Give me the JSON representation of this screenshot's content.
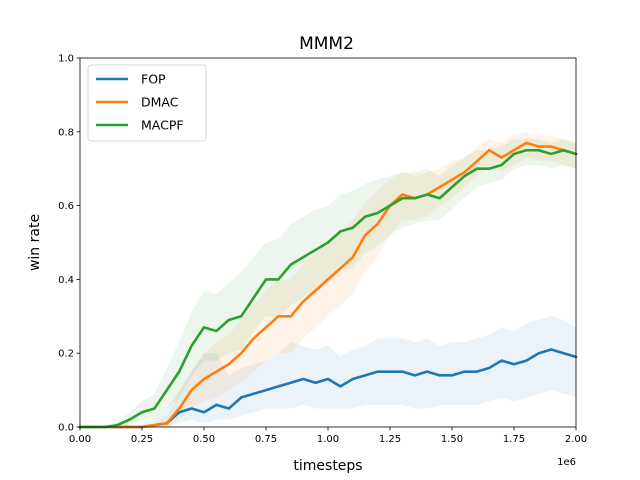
{
  "chart_data": {
    "type": "line",
    "title": "MMM2",
    "xlabel": "timesteps",
    "ylabel": "win rate",
    "x_offset_label": "1e6",
    "xlim": [
      0,
      2.0
    ],
    "ylim": [
      0,
      1.0
    ],
    "xticks": [
      0.0,
      0.25,
      0.5,
      0.75,
      1.0,
      1.25,
      1.5,
      1.75,
      2.0
    ],
    "xtick_labels": [
      "0.00",
      "0.25",
      "0.50",
      "0.75",
      "1.00",
      "1.25",
      "1.50",
      "1.75",
      "2.00"
    ],
    "yticks": [
      0.0,
      0.2,
      0.4,
      0.6,
      0.8,
      1.0
    ],
    "ytick_labels": [
      "0.0",
      "0.2",
      "0.4",
      "0.6",
      "0.8",
      "1.0"
    ],
    "legend_position": "top-left",
    "grid": false,
    "x": [
      0.0,
      0.05,
      0.1,
      0.15,
      0.2,
      0.25,
      0.3,
      0.35,
      0.4,
      0.45,
      0.5,
      0.55,
      0.6,
      0.65,
      0.7,
      0.75,
      0.8,
      0.85,
      0.9,
      0.95,
      1.0,
      1.05,
      1.1,
      1.15,
      1.2,
      1.25,
      1.3,
      1.35,
      1.4,
      1.45,
      1.5,
      1.55,
      1.6,
      1.65,
      1.7,
      1.75,
      1.8,
      1.85,
      1.9,
      1.95,
      2.0
    ],
    "series": [
      {
        "name": "FOP",
        "color": "#1f77b4",
        "values": [
          0.0,
          0.0,
          0.0,
          0.0,
          0.0,
          0.0,
          0.005,
          0.01,
          0.04,
          0.05,
          0.04,
          0.06,
          0.05,
          0.08,
          0.09,
          0.1,
          0.11,
          0.12,
          0.13,
          0.12,
          0.13,
          0.11,
          0.13,
          0.14,
          0.15,
          0.15,
          0.15,
          0.14,
          0.15,
          0.14,
          0.14,
          0.15,
          0.15,
          0.16,
          0.18,
          0.17,
          0.18,
          0.2,
          0.21,
          0.2,
          0.19
        ],
        "lower": [
          0.0,
          0.0,
          0.0,
          0.0,
          0.0,
          0.0,
          0.0,
          0.0,
          0.01,
          0.02,
          0.01,
          0.02,
          0.02,
          0.03,
          0.04,
          0.05,
          0.05,
          0.05,
          0.06,
          0.05,
          0.05,
          0.05,
          0.05,
          0.06,
          0.06,
          0.06,
          0.06,
          0.05,
          0.05,
          0.06,
          0.06,
          0.06,
          0.06,
          0.07,
          0.08,
          0.07,
          0.08,
          0.09,
          0.1,
          0.09,
          0.08
        ],
        "upper": [
          0.0,
          0.0,
          0.0,
          0.0,
          0.0,
          0.005,
          0.02,
          0.05,
          0.1,
          0.15,
          0.2,
          0.2,
          0.14,
          0.16,
          0.17,
          0.18,
          0.2,
          0.23,
          0.22,
          0.21,
          0.22,
          0.19,
          0.21,
          0.22,
          0.24,
          0.24,
          0.24,
          0.23,
          0.24,
          0.22,
          0.23,
          0.23,
          0.24,
          0.25,
          0.27,
          0.26,
          0.28,
          0.29,
          0.3,
          0.29,
          0.27
        ]
      },
      {
        "name": "DMAC",
        "color": "#ff7f0e",
        "values": [
          0.0,
          0.0,
          0.0,
          0.0,
          0.0,
          0.0,
          0.005,
          0.01,
          0.05,
          0.1,
          0.13,
          0.15,
          0.17,
          0.2,
          0.24,
          0.27,
          0.3,
          0.3,
          0.34,
          0.37,
          0.4,
          0.43,
          0.46,
          0.52,
          0.55,
          0.6,
          0.63,
          0.62,
          0.63,
          0.65,
          0.67,
          0.69,
          0.72,
          0.75,
          0.73,
          0.75,
          0.77,
          0.76,
          0.76,
          0.75,
          0.74
        ],
        "lower": [
          0.0,
          0.0,
          0.0,
          0.0,
          0.0,
          0.0,
          0.0,
          0.0,
          0.02,
          0.05,
          0.07,
          0.08,
          0.1,
          0.12,
          0.15,
          0.18,
          0.2,
          0.2,
          0.24,
          0.27,
          0.3,
          0.33,
          0.36,
          0.42,
          0.46,
          0.52,
          0.56,
          0.56,
          0.57,
          0.6,
          0.62,
          0.65,
          0.68,
          0.71,
          0.69,
          0.71,
          0.73,
          0.72,
          0.72,
          0.71,
          0.7
        ],
        "upper": [
          0.0,
          0.0,
          0.0,
          0.0,
          0.0,
          0.0,
          0.01,
          0.03,
          0.09,
          0.15,
          0.2,
          0.23,
          0.25,
          0.29,
          0.33,
          0.37,
          0.4,
          0.4,
          0.44,
          0.47,
          0.5,
          0.53,
          0.56,
          0.61,
          0.64,
          0.67,
          0.69,
          0.68,
          0.69,
          0.7,
          0.72,
          0.73,
          0.76,
          0.78,
          0.77,
          0.79,
          0.8,
          0.79,
          0.79,
          0.78,
          0.77
        ]
      },
      {
        "name": "MACPF",
        "color": "#2ca02c",
        "values": [
          0.0,
          0.0,
          0.0,
          0.005,
          0.02,
          0.04,
          0.05,
          0.1,
          0.15,
          0.22,
          0.27,
          0.26,
          0.29,
          0.3,
          0.35,
          0.4,
          0.4,
          0.44,
          0.46,
          0.48,
          0.5,
          0.53,
          0.54,
          0.57,
          0.58,
          0.6,
          0.62,
          0.62,
          0.63,
          0.62,
          0.65,
          0.68,
          0.7,
          0.7,
          0.71,
          0.74,
          0.75,
          0.75,
          0.74,
          0.75,
          0.74
        ],
        "lower": [
          0.0,
          0.0,
          0.0,
          0.0,
          0.005,
          0.02,
          0.02,
          0.05,
          0.08,
          0.14,
          0.18,
          0.18,
          0.2,
          0.21,
          0.26,
          0.3,
          0.3,
          0.33,
          0.35,
          0.37,
          0.39,
          0.42,
          0.43,
          0.47,
          0.49,
          0.52,
          0.54,
          0.55,
          0.56,
          0.56,
          0.59,
          0.62,
          0.65,
          0.66,
          0.67,
          0.7,
          0.71,
          0.71,
          0.7,
          0.71,
          0.7
        ],
        "upper": [
          0.0,
          0.0,
          0.0,
          0.01,
          0.04,
          0.07,
          0.09,
          0.16,
          0.23,
          0.31,
          0.37,
          0.36,
          0.39,
          0.42,
          0.46,
          0.5,
          0.51,
          0.55,
          0.57,
          0.59,
          0.6,
          0.63,
          0.64,
          0.66,
          0.67,
          0.68,
          0.69,
          0.69,
          0.7,
          0.68,
          0.71,
          0.73,
          0.75,
          0.75,
          0.76,
          0.78,
          0.78,
          0.78,
          0.77,
          0.78,
          0.77
        ]
      }
    ]
  }
}
